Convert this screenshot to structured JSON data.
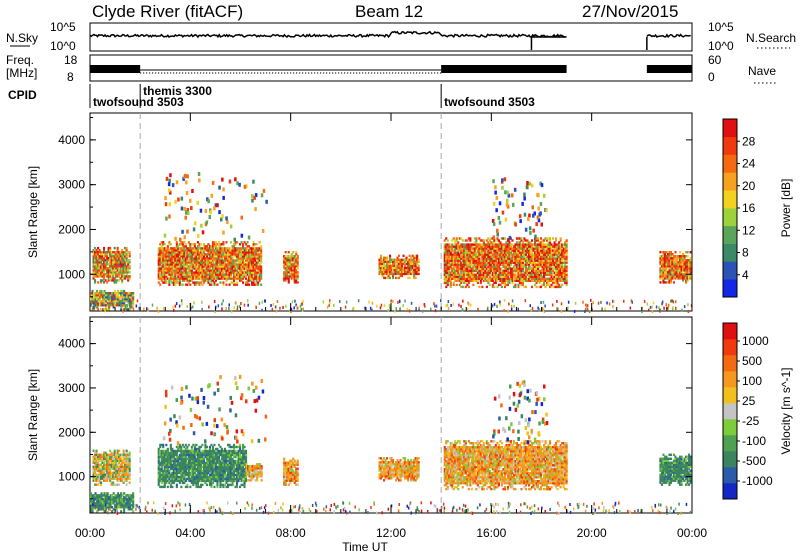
{
  "title": {
    "station": "Clyde River (fitACF)",
    "beam": "Beam 12",
    "date": "27/Nov/2015"
  },
  "params": {
    "nsky_label": "N.Sky",
    "nsky_ticks": [
      "10^5",
      "10^0"
    ],
    "nsearch_label": "N.Search",
    "nsearch_ticks": [
      "10^5",
      "10^0"
    ],
    "freq_label_1": "Freq.",
    "freq_label_2": "[MHz]",
    "freq_ticks": [
      "18",
      "8"
    ],
    "nave_label": "Nave",
    "nave_ticks": [
      "60",
      "0"
    ],
    "cpid_label": "CPID",
    "cpid_segments": [
      {
        "name": "twofsound 3503",
        "start_h": 0.0
      },
      {
        "name": "themis 3300",
        "start_h": 2.0
      },
      {
        "name": "twofsound 3503",
        "start_h": 14.0
      }
    ]
  },
  "chart_data": [
    {
      "type": "heatmap",
      "name_of_panel": "power",
      "ylabel": "Slant Range [km]",
      "xlabel": "",
      "y_ticks": [
        "1000",
        "2000",
        "3000",
        "4000"
      ],
      "x_ticks": [
        "00:00",
        "04:00",
        "08:00",
        "12:00",
        "16:00",
        "20:00",
        "00:00"
      ],
      "x_range_hours": [
        0,
        24
      ],
      "y_range_km": [
        180,
        4600
      ],
      "colorbar": {
        "label": "Power [dB]",
        "ticks": [
          "4",
          "8",
          "12",
          "16",
          "20",
          "24",
          "28"
        ],
        "colors": [
          "#1427e6",
          "#2b53b5",
          "#3a8a68",
          "#5aa55a",
          "#9ed23a",
          "#f2d21e",
          "#f8a020",
          "#f56a10",
          "#ee3a0e",
          "#e01010"
        ]
      },
      "regions": [
        {
          "t0": 0.1,
          "t1": 1.6,
          "r0": 800,
          "r1": 1600,
          "level": "mixed-high"
        },
        {
          "t0": 0.0,
          "t1": 1.7,
          "r0": 200,
          "r1": 650,
          "level": "mixed"
        },
        {
          "t0": 2.7,
          "t1": 6.8,
          "r0": 750,
          "r1": 1700,
          "level": "high"
        },
        {
          "t0": 7.7,
          "t1": 8.3,
          "r0": 800,
          "r1": 1500,
          "level": "high"
        },
        {
          "t0": 11.5,
          "t1": 13.1,
          "r0": 900,
          "r1": 1400,
          "level": "high"
        },
        {
          "t0": 14.1,
          "t1": 19.0,
          "r0": 700,
          "r1": 1800,
          "level": "high"
        },
        {
          "t0": 22.7,
          "t1": 23.9,
          "r0": 800,
          "r1": 1500,
          "level": "high"
        }
      ]
    },
    {
      "type": "heatmap",
      "name_of_panel": "velocity",
      "ylabel": "Slant Range [km]",
      "xlabel": "Time UT",
      "y_ticks": [
        "1000",
        "2000",
        "3000",
        "4000"
      ],
      "x_ticks": [
        "00:00",
        "04:00",
        "08:00",
        "12:00",
        "16:00",
        "20:00",
        "00:00"
      ],
      "x_range_hours": [
        0,
        24
      ],
      "y_range_km": [
        180,
        4600
      ],
      "colorbar": {
        "label": "Velocity [m s^-1]",
        "ticks": [
          "1000",
          "500",
          "100",
          "25",
          "-25",
          "-100",
          "-500",
          "-1000"
        ],
        "colors": [
          "#1427c6",
          "#2b5ba8",
          "#3a8560",
          "#4fa052",
          "#7dcd3a",
          "#c4c4c4",
          "#f2c01e",
          "#f59820",
          "#f56a10",
          "#ee3a0e",
          "#e01010"
        ]
      },
      "regions": [
        {
          "t0": 0.1,
          "t1": 1.6,
          "r0": 800,
          "r1": 1600,
          "level": "orange-green"
        },
        {
          "t0": 0.0,
          "t1": 1.7,
          "r0": 200,
          "r1": 650,
          "level": "green"
        },
        {
          "t0": 2.7,
          "t1": 6.2,
          "r0": 750,
          "r1": 1700,
          "level": "green"
        },
        {
          "t0": 6.2,
          "t1": 6.8,
          "r0": 900,
          "r1": 1300,
          "level": "orange"
        },
        {
          "t0": 7.7,
          "t1": 8.3,
          "r0": 800,
          "r1": 1400,
          "level": "orange"
        },
        {
          "t0": 11.5,
          "t1": 13.1,
          "r0": 900,
          "r1": 1400,
          "level": "orange"
        },
        {
          "t0": 14.1,
          "t1": 19.0,
          "r0": 700,
          "r1": 1800,
          "level": "orange"
        },
        {
          "t0": 22.7,
          "t1": 23.9,
          "r0": 800,
          "r1": 1500,
          "level": "green"
        }
      ]
    }
  ]
}
